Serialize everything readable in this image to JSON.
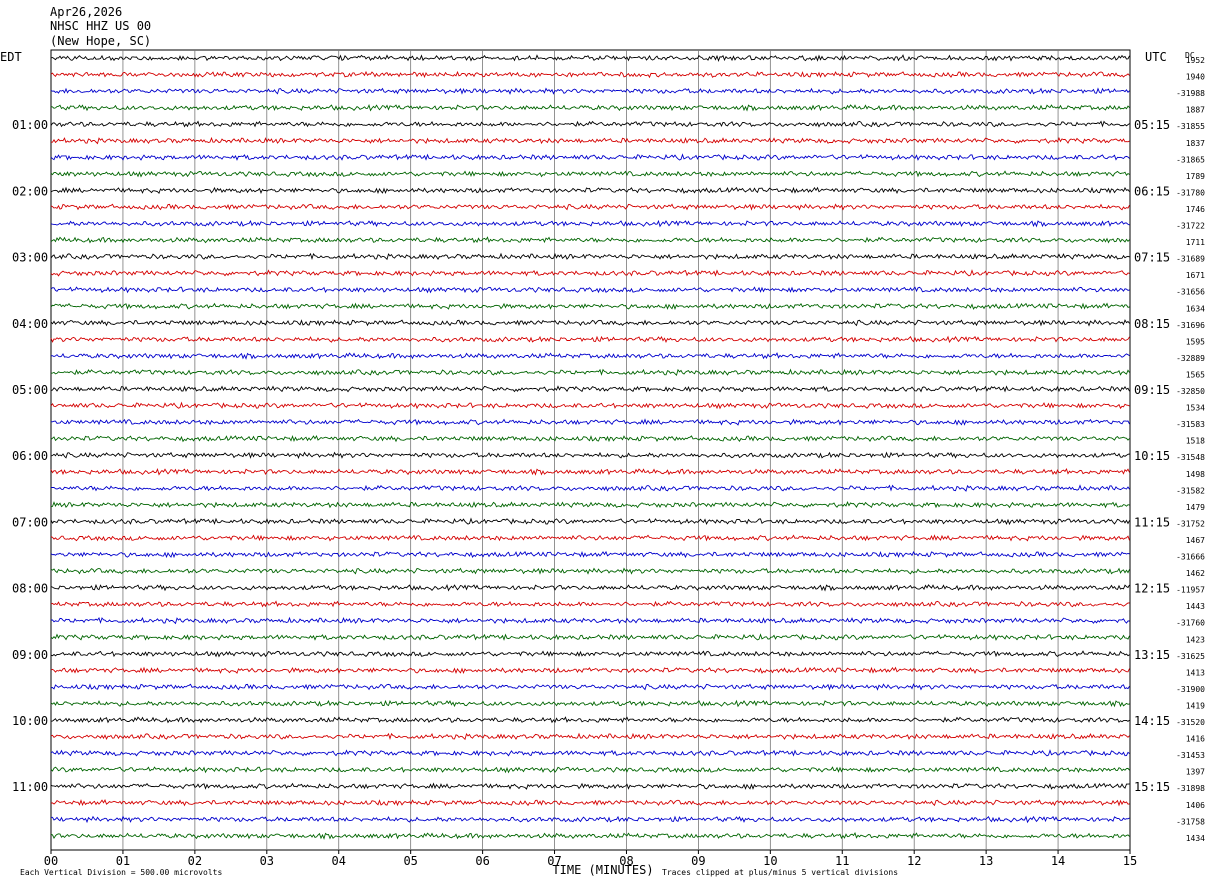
{
  "header": {
    "date": "Apr26,2026",
    "station": "NHSC HHZ US 00",
    "location": "(New Hope, SC)"
  },
  "left_tz": "EDT",
  "right_tz": "UTC",
  "dc_label": "DC",
  "footer": {
    "scale_note": "Each Vertical Division =  500.00 microvolts",
    "clip_note": "Traces clipped at plus/minus 5 vertical divisions"
  },
  "colors": {
    "trace": [
      "#000000",
      "#d40000",
      "#0000cc",
      "#006400"
    ],
    "grid": "#777777"
  },
  "chart_data": {
    "type": "helicorder",
    "xlabel": "TIME (MINUTES)",
    "x_ticks": [
      "00",
      "01",
      "02",
      "03",
      "04",
      "05",
      "06",
      "07",
      "08",
      "09",
      "10",
      "11",
      "12",
      "13",
      "14",
      "15"
    ],
    "xlim": [
      0,
      15
    ],
    "rows_per_hour": 4,
    "minutes_per_row": 15,
    "left_hour_labels": [
      "01:00",
      "02:00",
      "03:00",
      "04:00",
      "05:00",
      "06:00",
      "07:00",
      "08:00",
      "09:00",
      "10:00",
      "11:00"
    ],
    "right_hour_labels": [
      "05:15",
      "06:15",
      "07:15",
      "08:15",
      "09:15",
      "10:15",
      "11:15",
      "12:15",
      "13:15",
      "14:15",
      "15:15"
    ],
    "dc_offsets": [
      "1952",
      "1940",
      "-31988",
      "1887",
      "-31855",
      "1837",
      "-31865",
      "1789",
      "-31780",
      "1746",
      "-31722",
      "1711",
      "-31689",
      "1671",
      "-31656",
      "1634",
      "-31696",
      "1595",
      "-32889",
      "1565",
      "-32850",
      "1534",
      "-31583",
      "1518",
      "-31548",
      "1498",
      "-31582",
      "1479",
      "-31752",
      "1467",
      "-31666",
      "1462",
      "-11957",
      "1443",
      "-31760",
      "1423",
      "-31625",
      "1413",
      "-31900",
      "1419",
      "-31520",
      "1416",
      "-31453",
      "1397",
      "-31898",
      "1406",
      "-31758",
      "1434"
    ]
  }
}
